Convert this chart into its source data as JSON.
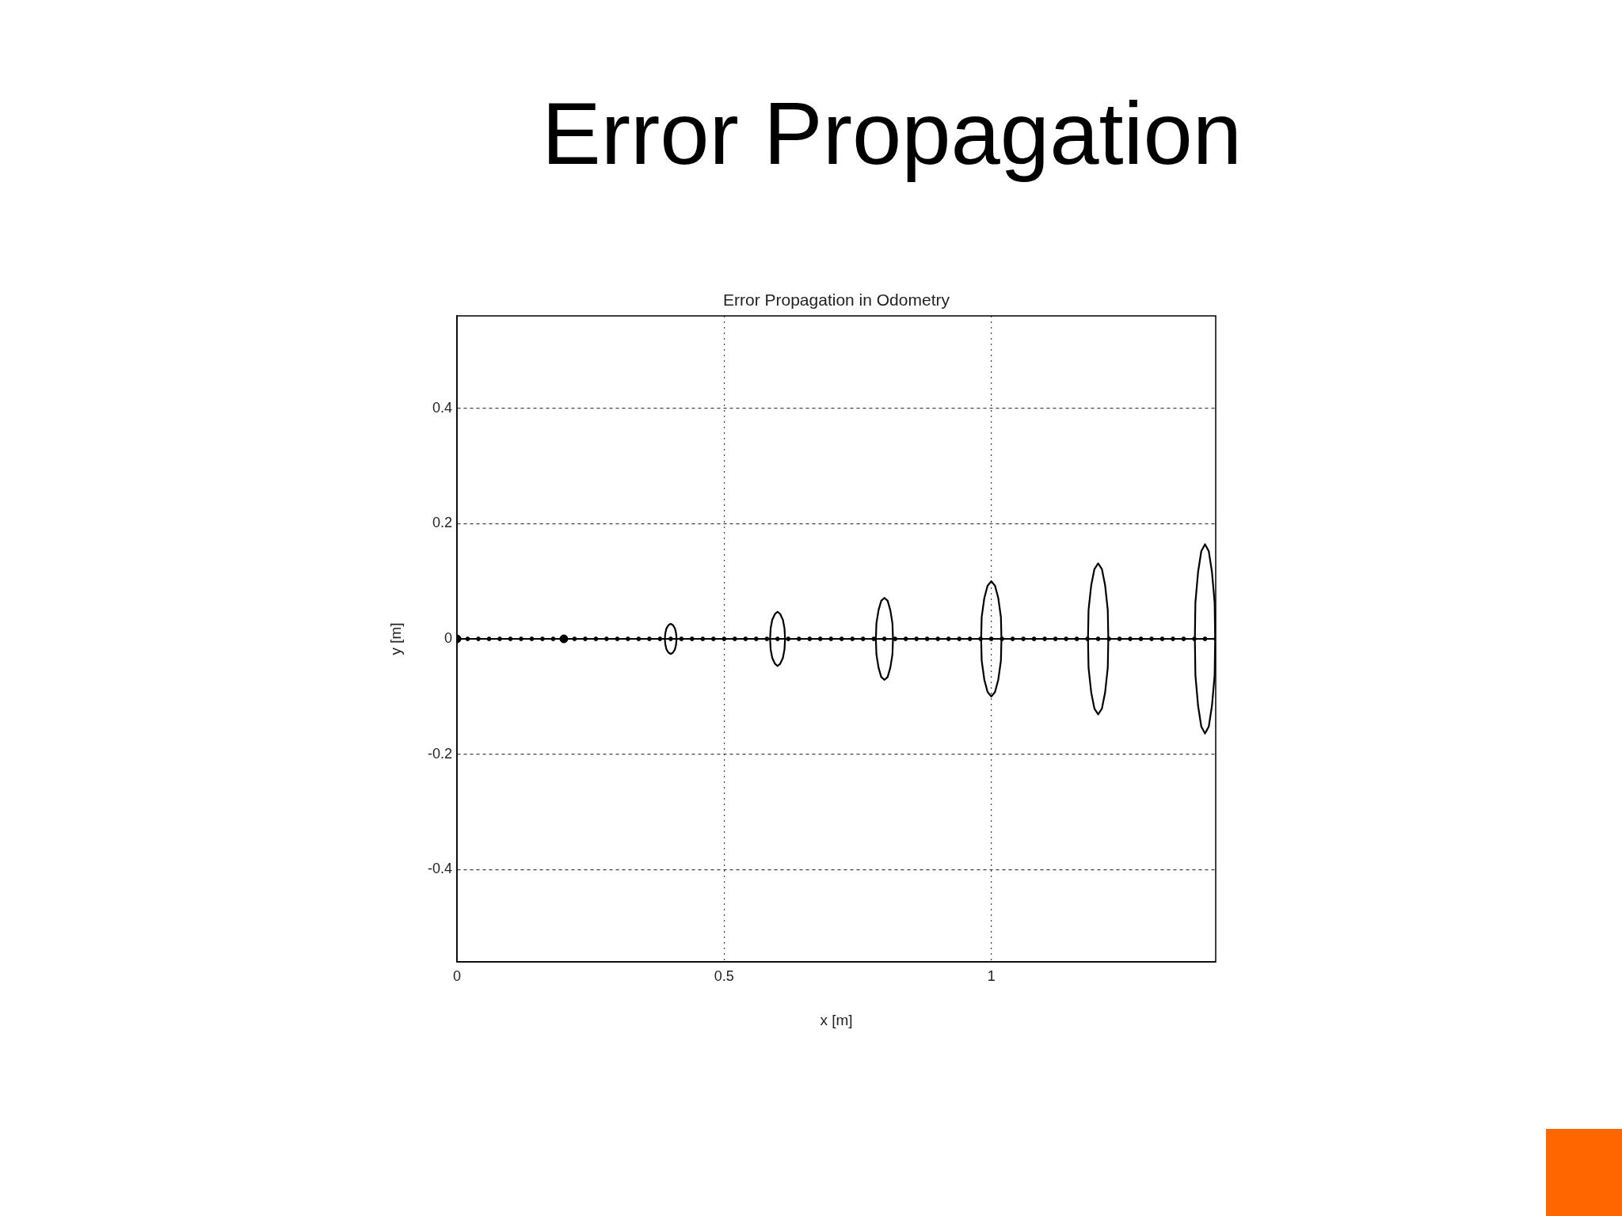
{
  "chart_data": {
    "type": "line",
    "title": "Error Propagation",
    "subtitle": "Error Propagation in Odometry",
    "xlabel": "x [m]",
    "ylabel": "y [m]",
    "xlim": [
      0,
      1.42
    ],
    "ylim": [
      -0.56,
      0.56
    ],
    "xticks": [
      0,
      0.5,
      1
    ],
    "yticks": [
      -0.4,
      -0.2,
      0,
      0.2,
      0.4
    ],
    "grid": true,
    "series": [
      {
        "color": "#000000",
        "marker": "circle",
        "x": [
          0,
          0.02,
          0.04,
          0.06,
          0.08,
          0.1,
          0.12,
          0.14,
          0.16,
          0.18,
          0.2,
          0.22,
          0.24,
          0.26,
          0.28,
          0.3,
          0.32,
          0.34,
          0.36,
          0.38,
          0.4,
          0.42,
          0.44,
          0.46,
          0.48,
          0.5,
          0.52,
          0.54,
          0.56,
          0.58,
          0.6,
          0.62,
          0.64,
          0.66,
          0.68,
          0.7,
          0.72,
          0.74,
          0.76,
          0.78,
          0.8,
          0.82,
          0.84,
          0.86,
          0.88,
          0.9,
          0.92,
          0.94,
          0.96,
          0.98,
          1,
          1.02,
          1.04,
          1.06,
          1.08,
          1.1,
          1.12,
          1.14,
          1.16,
          1.18,
          1.2,
          1.22,
          1.24,
          1.26,
          1.28,
          1.3,
          1.32,
          1.34,
          1.36,
          1.38,
          1.4,
          1.42
        ],
        "values": [
          0,
          0,
          0,
          0,
          0,
          0,
          0,
          0,
          0,
          0,
          0,
          0,
          0,
          0,
          0,
          0,
          0,
          0,
          0,
          0,
          0,
          0,
          0,
          0,
          0,
          0,
          0,
          0,
          0,
          0,
          0,
          0,
          0,
          0,
          0,
          0,
          0,
          0,
          0,
          0,
          0,
          0,
          0,
          0,
          0,
          0,
          0,
          0,
          0,
          0,
          0,
          0,
          0,
          0,
          0,
          0,
          0,
          0,
          0,
          0,
          0,
          0,
          0,
          0,
          0,
          0,
          0,
          0,
          0,
          0,
          0,
          0
        ]
      },
      {
        "type": "scatter",
        "color": "#000000",
        "marker": "circle",
        "x": [
          0,
          0.2
        ],
        "values": [
          0,
          0
        ]
      },
      {
        "color": "#000000",
        "marker": "none",
        "x": [
          0.389,
          0.39,
          0.392,
          0.396,
          0.4,
          0.404,
          0.408,
          0.41,
          0.411,
          null,
          0.411,
          0.41,
          0.408,
          0.404,
          0.4,
          0.396,
          0.392,
          0.39,
          0.389
        ],
        "values": [
          0,
          0.01,
          0.018,
          0.024,
          0.026,
          0.024,
          0.018,
          0.01,
          0,
          null,
          0,
          -0.01,
          -0.018,
          -0.024,
          -0.026,
          -0.024,
          -0.018,
          -0.01,
          0
        ]
      },
      {
        "color": "#000000",
        "marker": "none",
        "x": [
          0.586,
          0.587,
          0.59,
          0.595,
          0.6,
          0.605,
          0.61,
          0.613,
          0.614,
          null,
          0.614,
          0.613,
          0.61,
          0.605,
          0.6,
          0.595,
          0.59,
          0.587,
          0.586
        ],
        "values": [
          0,
          0.018,
          0.033,
          0.043,
          0.047,
          0.043,
          0.033,
          0.018,
          0,
          null,
          0,
          -0.018,
          -0.033,
          -0.043,
          -0.047,
          -0.043,
          -0.033,
          -0.018,
          0
        ]
      },
      {
        "color": "#000000",
        "marker": "none",
        "x": [
          0.784,
          0.785,
          0.789,
          0.794,
          0.8,
          0.806,
          0.811,
          0.815,
          0.816,
          null,
          0.816,
          0.815,
          0.811,
          0.806,
          0.8,
          0.794,
          0.789,
          0.785,
          0.784
        ],
        "values": [
          0,
          0.027,
          0.05,
          0.066,
          0.071,
          0.066,
          0.05,
          0.027,
          0,
          null,
          0,
          -0.027,
          -0.05,
          -0.066,
          -0.071,
          -0.066,
          -0.05,
          -0.027,
          0
        ]
      },
      {
        "color": "#000000",
        "marker": "none",
        "x": [
          0.981,
          0.982,
          0.987,
          0.993,
          1,
          1.007,
          1.013,
          1.018,
          1.019,
          null,
          1.019,
          1.018,
          1.013,
          1.007,
          1,
          0.993,
          0.987,
          0.982,
          0.981
        ],
        "values": [
          0,
          0.038,
          0.071,
          0.092,
          0.1,
          0.092,
          0.071,
          0.038,
          0,
          null,
          0,
          -0.038,
          -0.071,
          -0.092,
          -0.1,
          -0.092,
          -0.071,
          -0.038,
          0
        ]
      },
      {
        "color": "#000000",
        "marker": "none",
        "x": [
          1.181,
          1.182,
          1.187,
          1.193,
          1.2,
          1.207,
          1.213,
          1.218,
          1.219,
          null,
          1.219,
          1.218,
          1.213,
          1.207,
          1.2,
          1.193,
          1.187,
          1.182,
          1.181
        ],
        "values": [
          0,
          0.05,
          0.093,
          0.121,
          0.131,
          0.121,
          0.093,
          0.05,
          0,
          null,
          0,
          -0.05,
          -0.093,
          -0.121,
          -0.131,
          -0.121,
          -0.093,
          -0.05,
          0
        ]
      },
      {
        "color": "#000000",
        "marker": "none",
        "x": [
          1.381,
          1.382,
          1.387,
          1.393,
          1.4,
          1.407,
          1.413,
          1.418,
          1.419,
          null,
          1.419,
          1.418,
          1.413,
          1.407,
          1.4,
          1.393,
          1.387,
          1.382,
          1.381
        ],
        "values": [
          0,
          0.063,
          0.116,
          0.152,
          0.164,
          0.152,
          0.116,
          0.063,
          0,
          null,
          0,
          -0.063,
          -0.116,
          -0.152,
          -0.164,
          -0.152,
          -0.116,
          -0.063,
          0
        ]
      }
    ]
  }
}
